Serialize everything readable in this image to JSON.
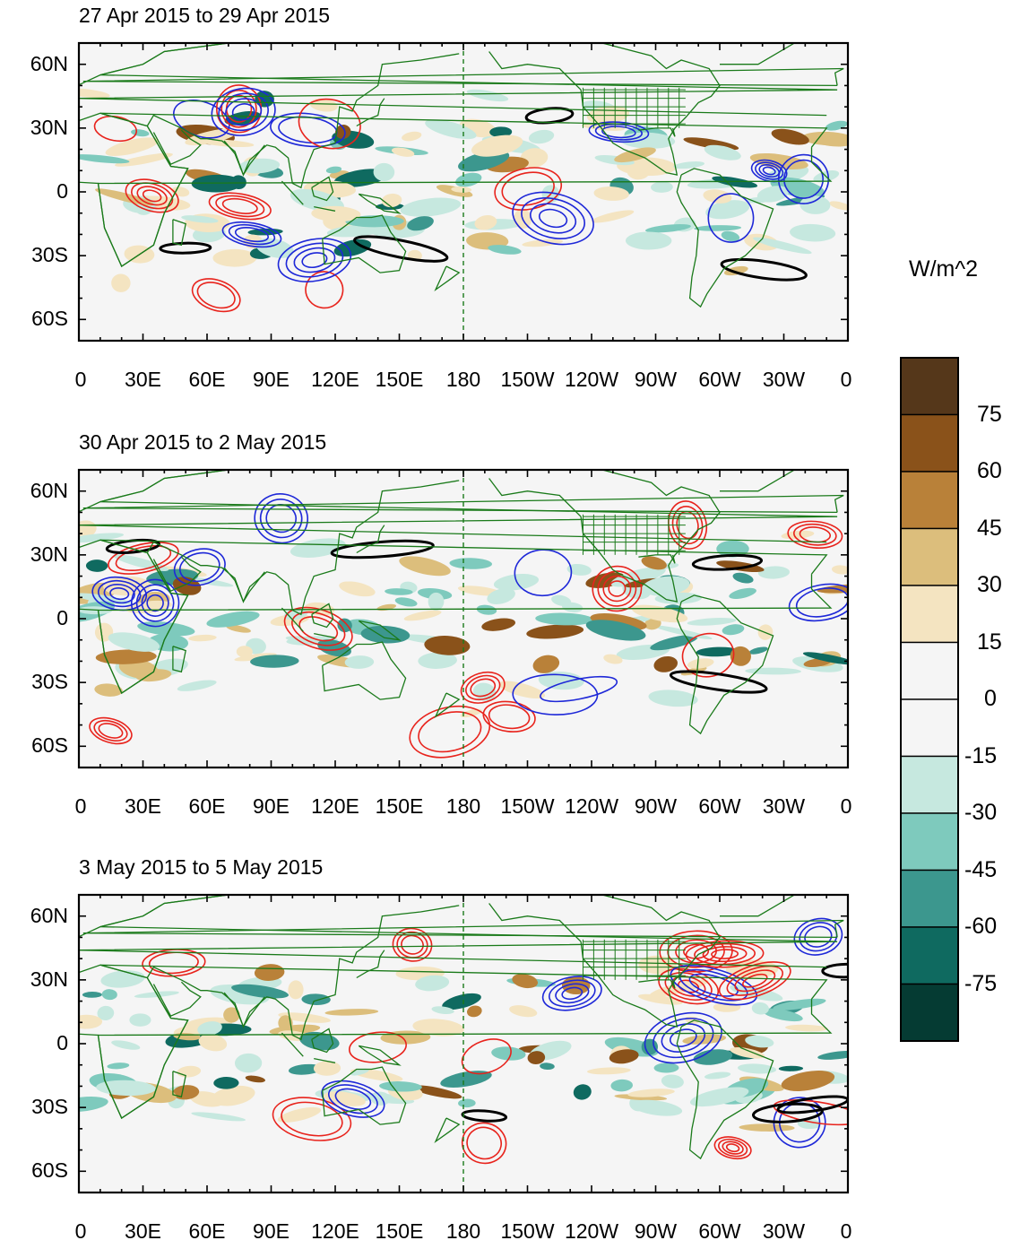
{
  "panels": [
    {
      "title": "27 Apr 2015 to 29 Apr 2015",
      "seed": 11
    },
    {
      "title": "30 Apr 2015 to 2 May 2015",
      "seed": 23
    },
    {
      "title": "3 May 2015 to 5 May 2015",
      "seed": 37
    }
  ],
  "lat_ticks": [
    "60N",
    "30N",
    "0",
    "30S",
    "60S"
  ],
  "lat_values": [
    60,
    30,
    0,
    -30,
    -60
  ],
  "lon_ticks": [
    "0",
    "30E",
    "60E",
    "90E",
    "120E",
    "150E",
    "180",
    "150W",
    "120W",
    "90W",
    "60W",
    "30W",
    "0"
  ],
  "lon_values": [
    0,
    30,
    60,
    90,
    120,
    150,
    180,
    210,
    240,
    270,
    300,
    330,
    360
  ],
  "lat_range": [
    -70,
    70
  ],
  "lon_range": [
    0,
    360
  ],
  "colorbar": {
    "unit": "W/m^2",
    "labels": [
      "75",
      "60",
      "45",
      "30",
      "15",
      "0",
      "-15",
      "-30",
      "-45",
      "-60",
      "-75"
    ],
    "colors": [
      "#55371a",
      "#8a521a",
      "#b98139",
      "#dcbe7c",
      "#f4e4c1",
      "#f5f5f5",
      "#f5f5f5",
      "#c6e8df",
      "#7ecabd",
      "#3c978e",
      "#0f6a60",
      "#053b33"
    ]
  },
  "colors": {
    "positive_contour": "#e8231c",
    "negative_contour": "#1e28d8",
    "coastline": "#1a7a1a",
    "emphasis_contour": "#000000",
    "frame": "#000000"
  }
}
